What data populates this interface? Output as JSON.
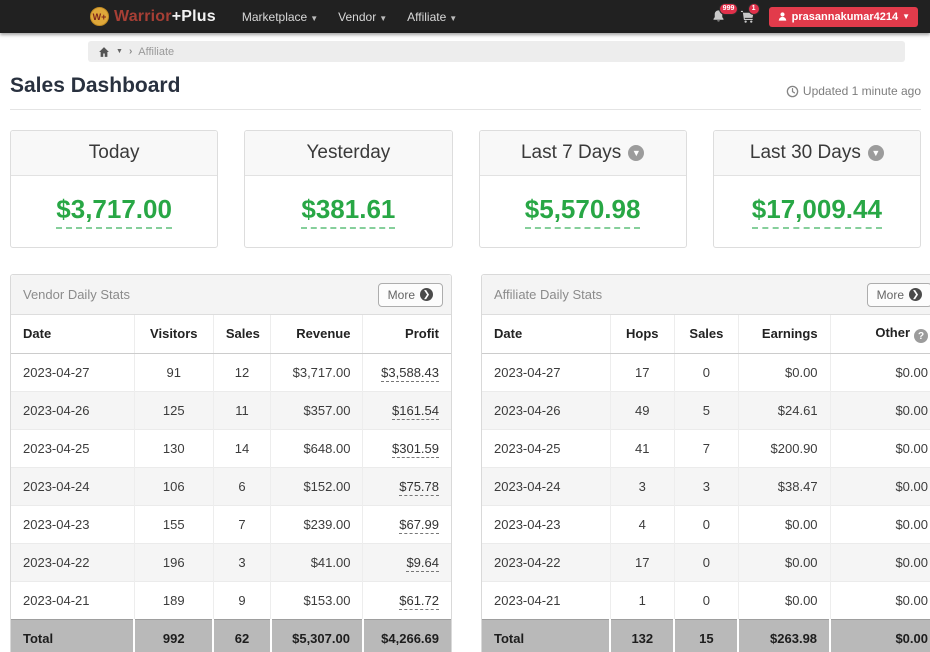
{
  "navbar": {
    "logo": {
      "badge": "W+",
      "brand_red": "Warrior",
      "brand_white": "+Plus"
    },
    "menu": [
      "Marketplace",
      "Vendor",
      "Affiliate"
    ],
    "notifications_badge": "999",
    "cart_badge": "1",
    "user": "prasannakumar4214"
  },
  "breadcrumb": {
    "page": "Affiliate"
  },
  "header": {
    "title": "Sales Dashboard",
    "updated": "Updated 1 minute ago"
  },
  "stat_cards": [
    {
      "label": "Today",
      "amount": "$3,717.00"
    },
    {
      "label": "Yesterday",
      "amount": "$381.61"
    },
    {
      "label": "Last 7 Days",
      "amount": "$5,570.98"
    },
    {
      "label": "Last 30 Days",
      "amount": "$17,009.44"
    }
  ],
  "panels": [
    {
      "title": "Vendor Daily Stats",
      "more_label": "More",
      "columns": [
        "Date",
        "Visitors",
        "Sales",
        "Revenue",
        "Profit"
      ],
      "rows": [
        [
          "2023-04-27",
          "91",
          "12",
          "$3,717.00",
          "$3,588.43"
        ],
        [
          "2023-04-26",
          "125",
          "11",
          "$357.00",
          "$161.54"
        ],
        [
          "2023-04-25",
          "130",
          "14",
          "$648.00",
          "$301.59"
        ],
        [
          "2023-04-24",
          "106",
          "6",
          "$152.00",
          "$75.78"
        ],
        [
          "2023-04-23",
          "155",
          "7",
          "$239.00",
          "$67.99"
        ],
        [
          "2023-04-22",
          "196",
          "3",
          "$41.00",
          "$9.64"
        ],
        [
          "2023-04-21",
          "189",
          "9",
          "$153.00",
          "$61.72"
        ]
      ],
      "total": [
        "Total",
        "992",
        "62",
        "$5,307.00",
        "$4,266.69"
      ]
    },
    {
      "title": "Affiliate Daily Stats",
      "more_label": "More",
      "columns": [
        "Date",
        "Hops",
        "Sales",
        "Earnings",
        "Other"
      ],
      "rows": [
        [
          "2023-04-27",
          "17",
          "0",
          "$0.00",
          "$0.00"
        ],
        [
          "2023-04-26",
          "49",
          "5",
          "$24.61",
          "$0.00"
        ],
        [
          "2023-04-25",
          "41",
          "7",
          "$200.90",
          "$0.00"
        ],
        [
          "2023-04-24",
          "3",
          "3",
          "$38.47",
          "$0.00"
        ],
        [
          "2023-04-23",
          "4",
          "0",
          "$0.00",
          "$0.00"
        ],
        [
          "2023-04-22",
          "17",
          "0",
          "$0.00",
          "$0.00"
        ],
        [
          "2023-04-21",
          "1",
          "0",
          "$0.00",
          "$0.00"
        ]
      ],
      "total": [
        "Total",
        "132",
        "15",
        "$263.98",
        "$0.00"
      ]
    }
  ],
  "colors": {
    "accent_green": "#28a745",
    "brand_red": "#a63f35",
    "danger_red": "#e23b4b",
    "navbar_bg": "#212121",
    "total_row_bg": "#b9b9b9"
  }
}
